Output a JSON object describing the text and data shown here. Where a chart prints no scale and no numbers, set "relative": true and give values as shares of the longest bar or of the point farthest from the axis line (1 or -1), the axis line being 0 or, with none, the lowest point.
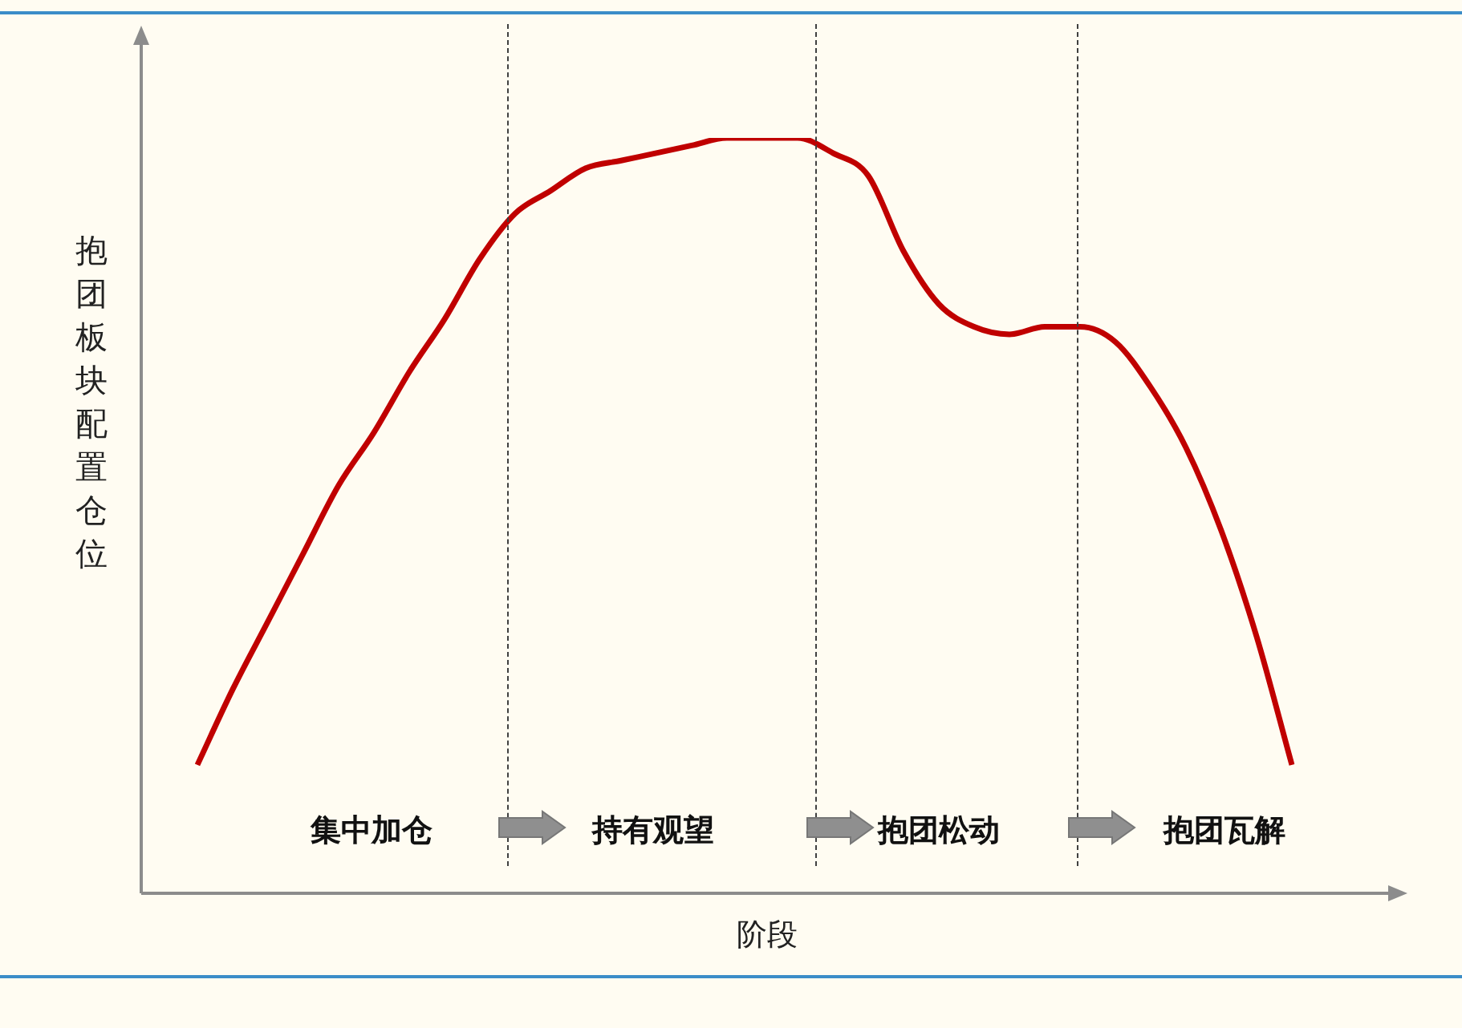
{
  "chart_data": {
    "type": "line",
    "relative": true,
    "xlabel": "阶段",
    "ylabel": "抱团板块配置仓位",
    "categories": [
      null,
      null,
      null,
      null,
      null,
      null,
      null,
      null,
      null,
      null,
      null,
      null,
      null,
      null,
      null,
      null,
      null,
      null,
      null,
      null,
      null,
      null,
      null,
      null,
      null,
      null,
      null,
      null,
      null,
      null,
      null,
      null
    ],
    "series": [
      {
        "color": "#c00000",
        "values": [
          0.17,
          0.27,
          0.36,
          0.45,
          0.54,
          0.61,
          0.69,
          0.76,
          0.84,
          0.9,
          0.93,
          0.96,
          0.97,
          0.98,
          0.99,
          1,
          1,
          1,
          0.98,
          0.95,
          0.85,
          0.78,
          0.75,
          0.74,
          0.75,
          0.75,
          0.73,
          0.67,
          0.59,
          0.48,
          0.34,
          0.17
        ]
      }
    ],
    "annotations": [
      "集中加仓",
      "持有观望",
      "抱团松动",
      "抱团瓦解"
    ],
    "legend": false,
    "marker": "none",
    "line_style": "solid"
  }
}
